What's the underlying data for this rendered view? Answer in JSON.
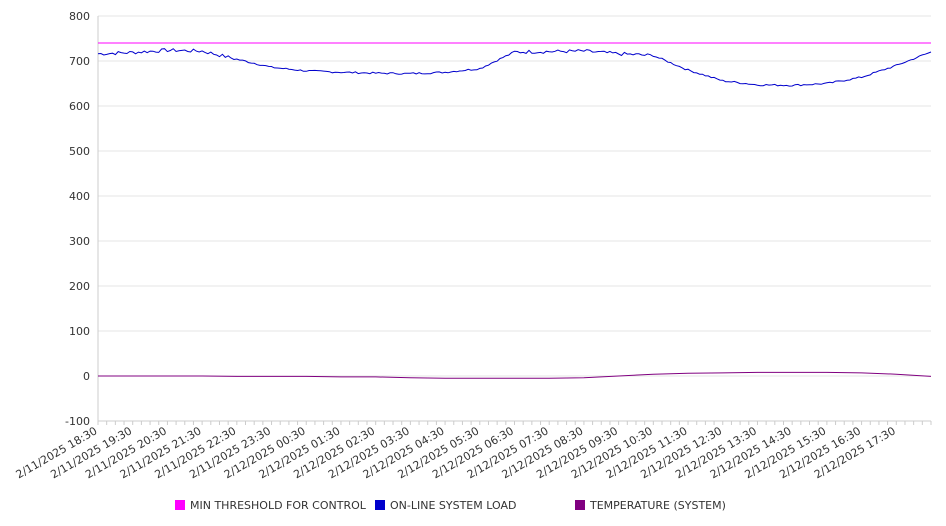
{
  "chart_data": {
    "type": "line",
    "title": "",
    "xlabel": "",
    "ylabel": "",
    "ylim": [
      -100,
      800
    ],
    "yticks": [
      -100,
      0,
      100,
      200,
      300,
      400,
      500,
      600,
      700,
      800
    ],
    "x_tick_labels": [
      "2/11/2025 18:30",
      "2/11/2025 19:30",
      "2/11/2025 20:30",
      "2/11/2025 21:30",
      "2/11/2025 22:30",
      "2/11/2025 23:30",
      "2/12/2025 00:30",
      "2/12/2025 01:30",
      "2/12/2025 02:30",
      "2/12/2025 03:30",
      "2/12/2025 04:30",
      "2/12/2025 05:30",
      "2/12/2025 06:30",
      "2/12/2025 07:30",
      "2/12/2025 08:30",
      "2/12/2025 09:30",
      "2/12/2025 10:30",
      "2/12/2025 11:30",
      "2/12/2025 12:30",
      "2/12/2025 13:30",
      "2/12/2025 14:30",
      "2/12/2025 15:30",
      "2/12/2025 16:30",
      "2/12/2025 17:30"
    ],
    "x_start": "2/11/2025 18:30",
    "x_end": "2/12/2025 18:30",
    "grid": true,
    "legend_position": "bottom",
    "series": [
      {
        "name": "MIN THRESHOLD FOR CONTROL",
        "color": "#ff00ff",
        "values": [
          740,
          740,
          740,
          740,
          740,
          740,
          740,
          740,
          740,
          740,
          740,
          740,
          740,
          740,
          740,
          740,
          740,
          740,
          740,
          740,
          740,
          740,
          740,
          740,
          740
        ]
      },
      {
        "name": "ON-LINE SYSTEM LOAD",
        "color": "#0000cc",
        "values": [
          716,
          719,
          724,
          722,
          704,
          686,
          678,
          675,
          673,
          672,
          675,
          683,
          720,
          721,
          722,
          716,
          712,
          680,
          656,
          647,
          646,
          650,
          664,
          690,
          720
        ]
      },
      {
        "name": "TEMPERATURE (SYSTEM)",
        "color": "#800080",
        "values": [
          0,
          0,
          0,
          0,
          -1,
          -1,
          -1,
          -2,
          -2,
          -4,
          -5,
          -5,
          -5,
          -5,
          -4,
          0,
          4,
          6,
          7,
          8,
          8,
          8,
          7,
          4,
          -1
        ]
      }
    ]
  }
}
